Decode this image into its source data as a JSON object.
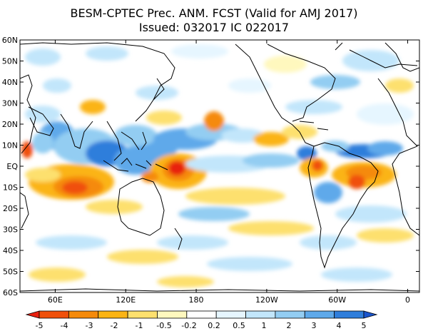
{
  "title": {
    "line1": "BESM-CPTEC Prec. ANM. FCST  (Valid for AMJ 2017)",
    "line2": "Issued:  032017 IC 022017"
  },
  "map": {
    "lat_labels": [
      "60N",
      "50N",
      "40N",
      "30N",
      "20N",
      "10N",
      "EQ",
      "10S",
      "20S",
      "30S",
      "40S",
      "50S",
      "60S"
    ],
    "lon_labels": [
      "60E",
      "120E",
      "180",
      "120W",
      "60W",
      "0"
    ]
  },
  "colorbar": {
    "labels": [
      "-5",
      "-4",
      "-3",
      "-2",
      "-1",
      "-0.5",
      "-0.2",
      "0.2",
      "0.5",
      "1",
      "2",
      "3",
      "4",
      "5"
    ],
    "colors": [
      "#e8200f",
      "#f0500a",
      "#f58a0a",
      "#fbb414",
      "#fde06e",
      "#fff8be",
      "#ffffff",
      "#e6f6ff",
      "#c2e6fb",
      "#93cdf2",
      "#5ea9ea",
      "#2f7edb",
      "#1a55cc"
    ]
  }
}
